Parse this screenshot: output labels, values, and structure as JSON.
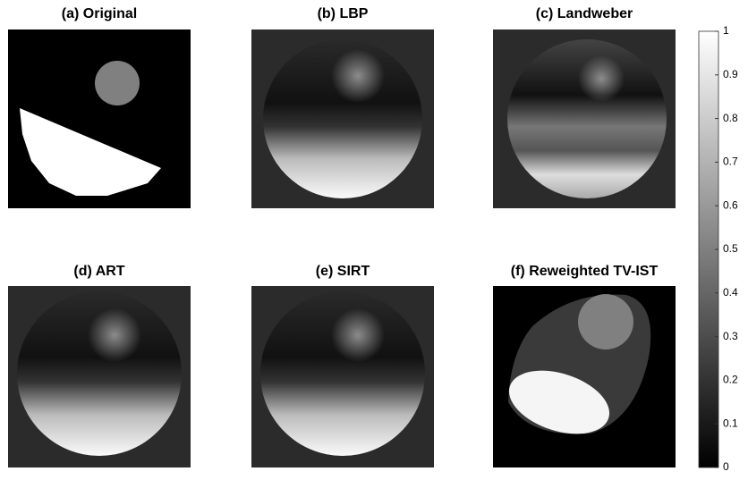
{
  "panels": [
    {
      "title": "(a) Original"
    },
    {
      "title": "(b) LBP"
    },
    {
      "title": "(c) Landweber"
    },
    {
      "title": "(d) ART"
    },
    {
      "title": "(e) SIRT"
    },
    {
      "title": "(f) Reweighted TV-IST"
    }
  ],
  "colorbar": {
    "lim": [
      0,
      1
    ],
    "ticks": [
      0,
      0.1,
      0.2,
      0.3,
      0.4,
      0.5,
      0.6,
      0.7,
      0.8,
      0.9,
      1
    ]
  }
}
